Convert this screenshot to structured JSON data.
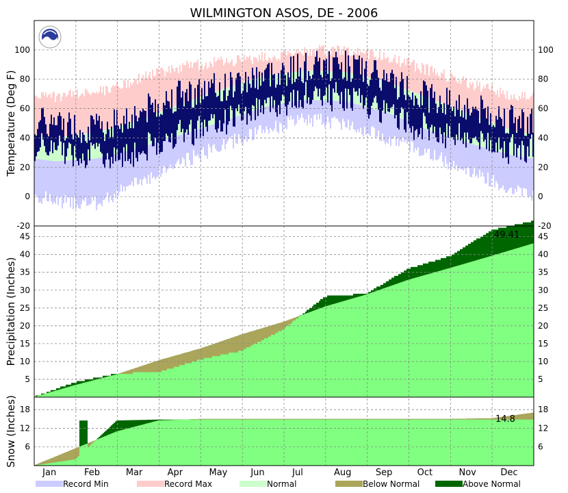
{
  "chart_data": {
    "type": "area",
    "title": "WILMINGTON   ASOS, DE - 2006",
    "months": [
      "Jan",
      "Feb",
      "Mar",
      "Apr",
      "May",
      "Jun",
      "Jul",
      "Aug",
      "Sep",
      "Oct",
      "Nov",
      "Dec"
    ],
    "legend": [
      {
        "label": "Record Min",
        "color": "#ccccff"
      },
      {
        "label": "Record Max",
        "color": "#ffcccc"
      },
      {
        "label": "Normal",
        "color": "#ccffcc"
      },
      {
        "label": "Below Normal",
        "color": "#aaa55a"
      },
      {
        "label": "Above Normal",
        "color": "#006600"
      }
    ],
    "temperature": {
      "ylabel": "Temperature (Deg F)",
      "ylim": [
        -20,
        120
      ],
      "yticks": [
        -20,
        0,
        20,
        40,
        60,
        80,
        100
      ],
      "monthly_normal_high": [
        40,
        44,
        52,
        63,
        73,
        82,
        86,
        85,
        78,
        67,
        56,
        45
      ],
      "monthly_normal_low": [
        24,
        26,
        33,
        42,
        51,
        61,
        66,
        65,
        57,
        45,
        36,
        28
      ],
      "monthly_record_high": [
        72,
        75,
        84,
        92,
        96,
        99,
        103,
        104,
        99,
        90,
        81,
        73
      ],
      "monthly_record_low": [
        -8,
        -10,
        5,
        18,
        30,
        40,
        48,
        45,
        35,
        24,
        12,
        0
      ],
      "monthly_observed_high": [
        50,
        46,
        57,
        70,
        74,
        83,
        88,
        90,
        79,
        68,
        60,
        52
      ],
      "monthly_observed_low": [
        33,
        28,
        30,
        44,
        51,
        62,
        68,
        68,
        57,
        45,
        40,
        32
      ]
    },
    "precipitation": {
      "ylabel": "Precipitation (Inches)",
      "ylim": [
        0,
        48
      ],
      "yticks": [
        5,
        10,
        15,
        20,
        25,
        30,
        35,
        40,
        45
      ],
      "annotation": "49.41",
      "cumulative_normal_month_end": [
        3.4,
        6.4,
        10.3,
        13.6,
        17.6,
        21.1,
        25.4,
        28.8,
        32.9,
        36.2,
        39.6,
        43.1
      ],
      "cumulative_observed_month_end": [
        4.2,
        6.6,
        7.0,
        10.5,
        13.0,
        19.0,
        28.2,
        29.0,
        36.0,
        39.5,
        46.8,
        49.41
      ]
    },
    "snow": {
      "ylabel": "Snow (Inches)",
      "ylim": [
        0,
        22
      ],
      "yticks": [
        6,
        12,
        18
      ],
      "annotation": "14.8",
      "cumulative_normal_month_end": [
        5.5,
        11.0,
        14.5,
        15.0,
        15.0,
        15.0,
        15.0,
        15.0,
        15.0,
        15.0,
        15.2,
        17.0
      ],
      "cumulative_observed_month_end": [
        2.0,
        14.5,
        14.8,
        14.8,
        14.8,
        14.8,
        14.8,
        14.8,
        14.8,
        14.8,
        14.8,
        14.8
      ]
    }
  }
}
